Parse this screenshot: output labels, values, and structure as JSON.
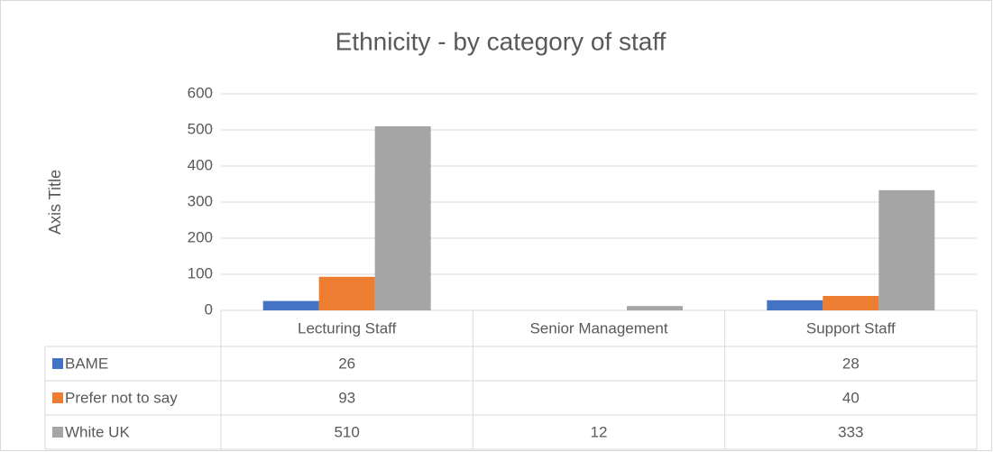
{
  "chart_data": {
    "type": "bar",
    "title": "Ethnicity - by category of staff",
    "y_axis_title": "Axis Title",
    "categories": [
      "Lecturing Staff",
      "Senior Management",
      "Support Staff"
    ],
    "series": [
      {
        "name": "BAME",
        "color": "#4472c4",
        "values": [
          26,
          null,
          28
        ]
      },
      {
        "name": "Prefer not to say",
        "color": "#ed7d31",
        "values": [
          93,
          null,
          40
        ]
      },
      {
        "name": "White UK",
        "color": "#a5a5a5",
        "values": [
          510,
          12,
          333
        ]
      }
    ],
    "ylim": [
      0,
      600
    ],
    "yticks": [
      0,
      100,
      200,
      300,
      400,
      500,
      600
    ],
    "grid": true,
    "data_table": true
  }
}
